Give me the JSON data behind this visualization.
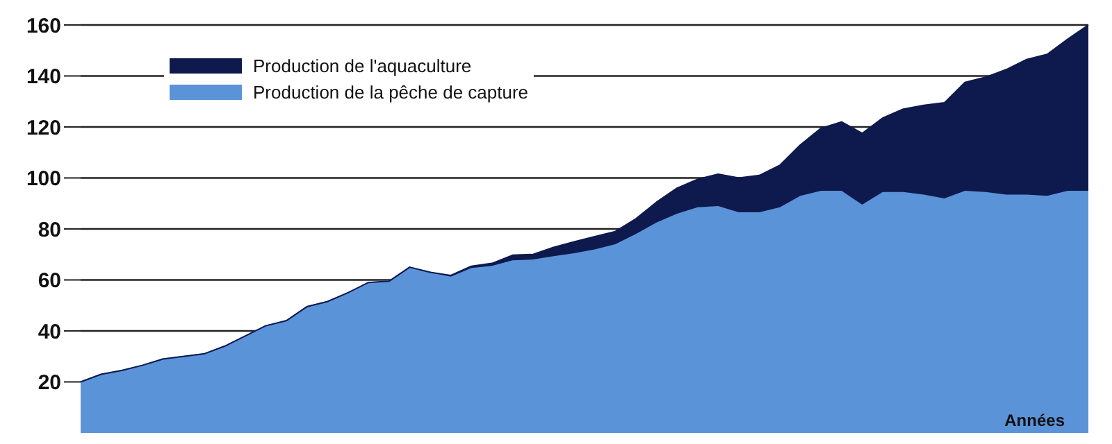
{
  "chart_data": {
    "type": "area",
    "stacked": true,
    "xlabel": "Années",
    "categories": [
      null,
      null,
      null,
      null,
      null,
      null,
      null,
      null,
      null,
      null,
      null,
      null,
      null,
      null,
      null,
      null,
      null,
      null,
      null,
      null,
      null,
      null,
      null,
      null,
      null,
      null,
      null,
      null,
      null,
      null,
      null,
      null,
      null,
      null,
      null,
      null,
      null,
      null,
      null,
      null,
      null,
      null,
      null,
      null,
      null,
      null,
      null,
      null,
      null,
      null
    ],
    "series": [
      {
        "name": "Production de la pêche de capture",
        "color": "#5b93d9",
        "values": [
          20,
          23,
          24.5,
          26.5,
          29,
          30,
          31,
          34,
          38,
          42,
          44,
          49.5,
          51.5,
          55,
          59,
          59.5,
          65,
          63,
          61.3,
          64.7,
          65.5,
          67.7,
          68,
          69.3,
          70.5,
          72,
          74,
          78,
          82.5,
          86,
          88.5,
          89,
          86.5,
          86.5,
          88.5,
          93,
          95,
          95,
          89.5,
          94.5,
          94.5,
          93.5,
          92,
          95,
          94.5,
          93.5,
          93.5,
          93,
          95,
          95
        ]
      },
      {
        "name": "Production de l'aquaculture",
        "color": "#0e1a4d",
        "values": [
          0,
          0,
          0,
          0,
          0,
          0,
          0,
          0,
          0,
          0,
          0,
          0,
          0,
          0,
          0,
          0,
          0,
          0,
          0.5,
          0.7,
          1,
          2,
          2,
          3.5,
          4.5,
          5,
          5,
          6,
          8,
          10,
          11,
          12.5,
          13.5,
          14.5,
          16.5,
          20,
          24.5,
          27,
          28,
          29,
          32.5,
          35,
          37.5,
          42.5,
          45,
          49,
          53,
          55.5,
          59.5,
          65
        ]
      }
    ],
    "ylim": [
      0,
      160
    ],
    "yticks": [
      20,
      40,
      60,
      80,
      100,
      120,
      140,
      160
    ],
    "grid": "y",
    "legend": "top left",
    "tick_labels": "y"
  }
}
